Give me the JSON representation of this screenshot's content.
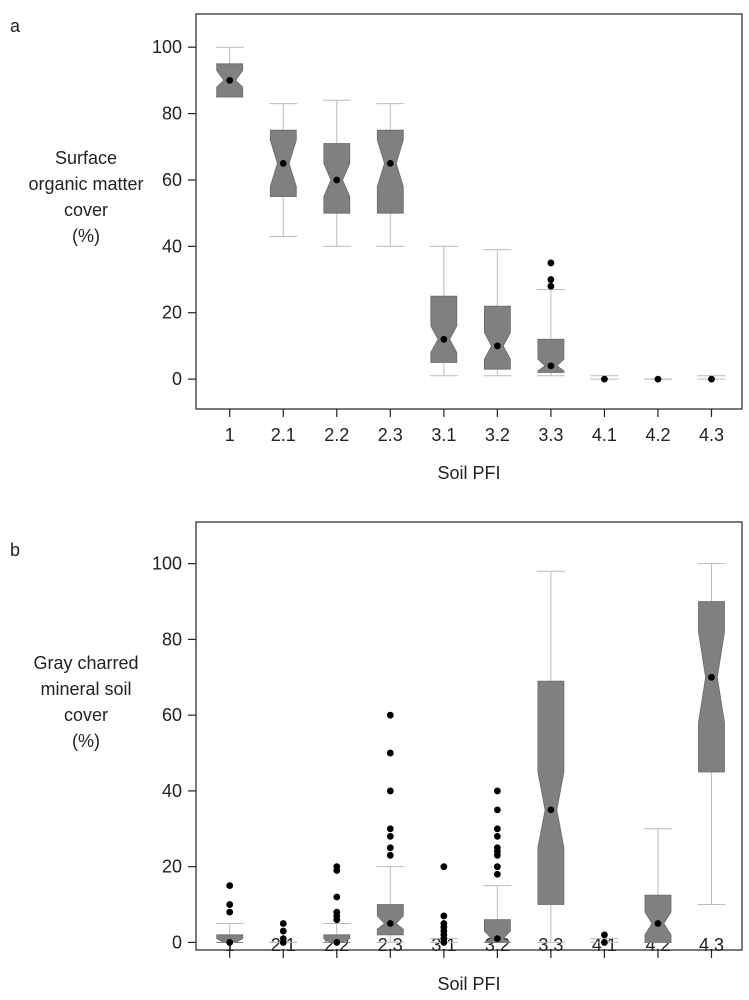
{
  "chart_data": [
    {
      "type": "box",
      "panel_label": "a",
      "xlabel": "Soil PFI",
      "ylabel_lines": [
        "Surface",
        "organic matter",
        "cover",
        "(%)"
      ],
      "categories": [
        "1",
        "2.1",
        "2.2",
        "2.3",
        "3.1",
        "3.2",
        "3.3",
        "4.1",
        "4.2",
        "4.3"
      ],
      "ylim": [
        -9,
        110
      ],
      "yticks": [
        0,
        20,
        40,
        60,
        80,
        100
      ],
      "boxes": [
        {
          "min": 85,
          "q1": 85,
          "notch_lo": 88,
          "median": 90,
          "notch_hi": 93,
          "q3": 95,
          "max": 100,
          "outliers": []
        },
        {
          "min": 43,
          "q1": 55,
          "notch_lo": 58,
          "median": 65,
          "notch_hi": 72,
          "q3": 75,
          "max": 83,
          "outliers": []
        },
        {
          "min": 40,
          "q1": 50,
          "notch_lo": 55,
          "median": 60,
          "notch_hi": 65,
          "q3": 71,
          "max": 84,
          "outliers": []
        },
        {
          "min": 40,
          "q1": 50,
          "notch_lo": 58,
          "median": 65,
          "notch_hi": 72,
          "q3": 75,
          "max": 83,
          "outliers": []
        },
        {
          "min": 1,
          "q1": 5,
          "notch_lo": 8,
          "median": 12,
          "notch_hi": 16,
          "q3": 25,
          "max": 40,
          "outliers": []
        },
        {
          "min": 1,
          "q1": 3,
          "notch_lo": 6,
          "median": 10,
          "notch_hi": 14,
          "q3": 22,
          "max": 39,
          "outliers": []
        },
        {
          "min": 1,
          "q1": 2,
          "notch_lo": 2.5,
          "median": 4,
          "notch_hi": 6,
          "q3": 12,
          "max": 27,
          "outliers": [
            28,
            30,
            35
          ]
        },
        {
          "min": 0,
          "q1": 0,
          "notch_lo": 0,
          "median": 0,
          "notch_hi": 0,
          "q3": 0,
          "max": 1,
          "outliers": []
        },
        {
          "min": 0,
          "q1": 0,
          "notch_lo": 0,
          "median": 0,
          "notch_hi": 0,
          "q3": 0,
          "max": 0,
          "outliers": []
        },
        {
          "min": 0,
          "q1": 0,
          "notch_lo": 0,
          "median": 0,
          "notch_hi": 0,
          "q3": 0,
          "max": 1,
          "outliers": []
        }
      ]
    },
    {
      "type": "box",
      "panel_label": "b",
      "xlabel": "Soil PFI",
      "ylabel_lines": [
        "Gray charred",
        "mineral soil",
        "cover",
        "(%)"
      ],
      "categories": [
        "1",
        "2.1",
        "2.2",
        "2.3",
        "3.1",
        "3.2",
        "3.3",
        "4.1",
        "4.2",
        "4.3"
      ],
      "ylim": [
        -2,
        111
      ],
      "yticks": [
        0,
        20,
        40,
        60,
        80,
        100
      ],
      "boxes": [
        {
          "min": 0,
          "q1": 0,
          "notch_lo": 0,
          "median": 0,
          "notch_hi": 1,
          "q3": 2,
          "max": 5,
          "outliers": [
            8,
            10,
            15
          ]
        },
        {
          "min": 0,
          "q1": 0,
          "notch_lo": 0,
          "median": 0,
          "notch_hi": 0,
          "q3": 0,
          "max": 0,
          "outliers": [
            1,
            3,
            5
          ]
        },
        {
          "min": 0,
          "q1": 0,
          "notch_lo": 0,
          "median": 0,
          "notch_hi": 1,
          "q3": 2,
          "max": 5,
          "outliers": [
            6,
            7,
            8,
            12,
            19,
            20
          ]
        },
        {
          "min": 0,
          "q1": 2,
          "notch_lo": 3.5,
          "median": 5,
          "notch_hi": 7,
          "q3": 10,
          "max": 20,
          "outliers": [
            23,
            25,
            28,
            30,
            40,
            50,
            60
          ]
        },
        {
          "min": 0,
          "q1": 0,
          "notch_lo": 0,
          "median": 0,
          "notch_hi": 0,
          "q3": 0,
          "max": 1,
          "outliers": [
            1,
            2,
            3,
            4,
            5,
            7,
            20
          ]
        },
        {
          "min": 0,
          "q1": 0,
          "notch_lo": 0,
          "median": 1,
          "notch_hi": 3,
          "q3": 6,
          "max": 15,
          "outliers": [
            18,
            20,
            23,
            24,
            25,
            28,
            30,
            35,
            40
          ]
        },
        {
          "min": 0,
          "q1": 10,
          "notch_lo": 25,
          "median": 35,
          "notch_hi": 45,
          "q3": 69,
          "max": 98,
          "outliers": []
        },
        {
          "min": 0,
          "q1": 0,
          "notch_lo": 0,
          "median": 0,
          "notch_hi": 0,
          "q3": 0,
          "max": 1,
          "outliers": [
            2
          ]
        },
        {
          "min": 0,
          "q1": 0,
          "notch_lo": 2,
          "median": 5,
          "notch_hi": 8,
          "q3": 12.5,
          "max": 30,
          "outliers": []
        },
        {
          "min": 10,
          "q1": 45,
          "notch_lo": 58,
          "median": 70,
          "notch_hi": 82,
          "q3": 90,
          "max": 100,
          "outliers": []
        }
      ]
    }
  ]
}
